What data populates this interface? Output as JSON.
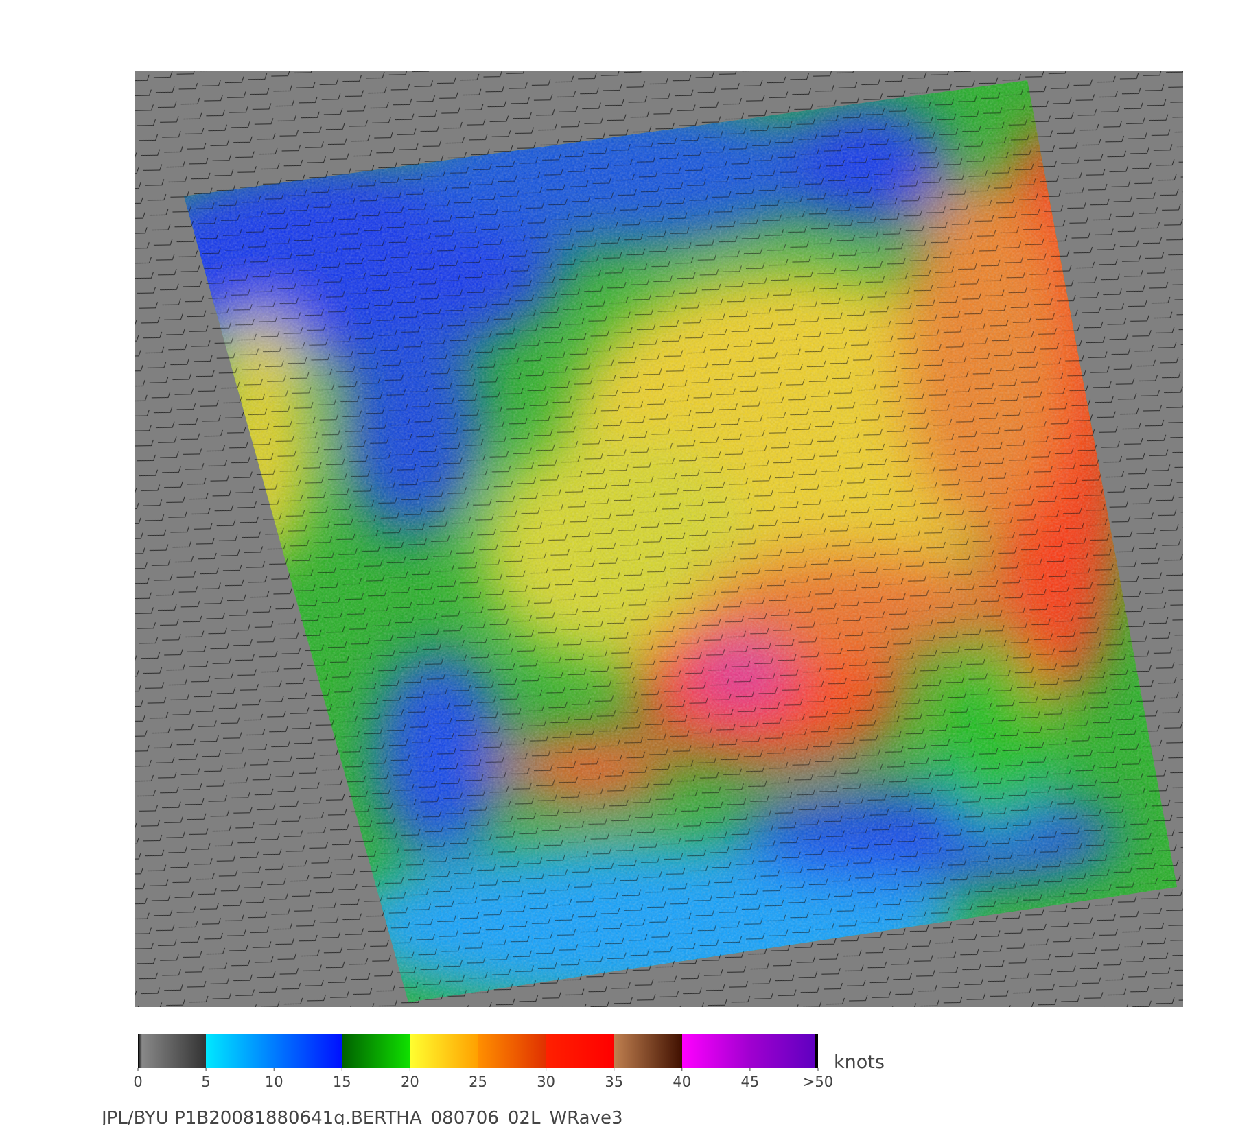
{
  "colorbar": {
    "ticks": [
      0,
      5,
      10,
      15,
      20,
      25,
      30,
      35,
      40,
      45,
      {
        "value": 50,
        "label": ">50"
      }
    ],
    "unit": "knots"
  },
  "caption": "JPL/BYU  P1B20081880641q.BERTHA_080706_02L_WRave3"
}
